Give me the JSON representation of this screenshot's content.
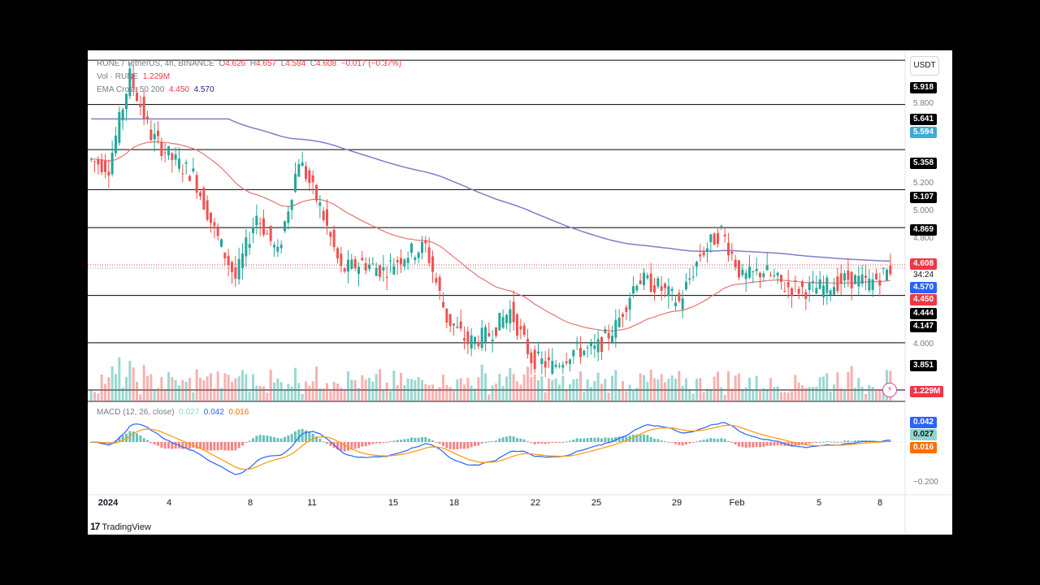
{
  "header": {
    "symbol": "RUNE / TetherUS, 4h, BINANCE",
    "open_label": "O",
    "open": "4.626",
    "high_label": "H",
    "high": "4.657",
    "low_label": "L",
    "low": "4.584",
    "close_label": "C",
    "close": "4.608",
    "change": "−0.017 (−0.37%)"
  },
  "volume_legend": {
    "label": "Vol · RUNE",
    "value": "1.229M"
  },
  "ema_legend": {
    "label": "EMA Cross 50 200",
    "fast": "4.450",
    "slow": "4.570"
  },
  "macd_legend": {
    "label": "MACD (12, 26, close)",
    "hist": "0.027",
    "macd": "0.042",
    "signal": "0.016"
  },
  "currency_button": "USDT",
  "price_axis_ticks": [
    "5.800",
    "5.200",
    "5.000",
    "4.800",
    "4.000"
  ],
  "macd_axis_ticks": [
    "−0.200"
  ],
  "price_tags": {
    "l5918": "5.918",
    "l5641": "5.641",
    "ema200_tag": "5.594",
    "l5358": "5.358",
    "l5107": "5.107",
    "l4869": "4.869",
    "last_price": "4.608",
    "countdown": "34:24",
    "ema200_now": "4.570",
    "ema50_now": "4.450",
    "l4444": "4.444",
    "l4147": "4.147",
    "l3851": "3.851",
    "volume_now": "1.229M"
  },
  "macd_tags": {
    "macd": "0.042",
    "hist": "0.027",
    "signal": "0.016"
  },
  "x_labels": [
    "2024",
    "4",
    "8",
    "11",
    "15",
    "18",
    "22",
    "25",
    "29",
    "Feb",
    "5",
    "8"
  ],
  "branding": "TradingView",
  "colors": {
    "up": "#26a69a",
    "down": "#ef5350",
    "ema_fast": "#e57373",
    "ema_slow": "#7e7ec8",
    "macd_line": "#2962ff",
    "signal_line": "#ff9800",
    "level_line": "#000000"
  },
  "chart_data": {
    "type": "candlestick",
    "timeframe": "4h",
    "x_range": [
      "2024-01-01",
      "2024-02-08"
    ],
    "y_range": [
      3.78,
      5.98
    ],
    "horizontal_levels": [
      5.918,
      5.641,
      5.358,
      5.107,
      4.869,
      4.444,
      4.147,
      3.851
    ],
    "close_series": [
      {
        "x": "2024-01-01",
        "y": 5.3
      },
      {
        "x": "2024-01-02",
        "y": 5.25
      },
      {
        "x": "2024-01-03",
        "y": 5.82
      },
      {
        "x": "2024-01-04",
        "y": 5.45
      },
      {
        "x": "2024-01-05",
        "y": 5.3
      },
      {
        "x": "2024-01-06",
        "y": 5.2
      },
      {
        "x": "2024-01-07",
        "y": 4.85
      },
      {
        "x": "2024-01-08",
        "y": 4.55
      },
      {
        "x": "2024-01-09",
        "y": 4.95
      },
      {
        "x": "2024-01-10",
        "y": 4.7
      },
      {
        "x": "2024-01-11",
        "y": 5.3
      },
      {
        "x": "2024-01-12",
        "y": 5.0
      },
      {
        "x": "2024-01-13",
        "y": 4.6
      },
      {
        "x": "2024-01-14",
        "y": 4.65
      },
      {
        "x": "2024-01-15",
        "y": 4.6
      },
      {
        "x": "2024-01-16",
        "y": 4.7
      },
      {
        "x": "2024-01-17",
        "y": 4.75
      },
      {
        "x": "2024-01-18",
        "y": 4.3
      },
      {
        "x": "2024-01-19",
        "y": 4.15
      },
      {
        "x": "2024-01-20",
        "y": 4.2
      },
      {
        "x": "2024-01-21",
        "y": 4.35
      },
      {
        "x": "2024-01-22",
        "y": 4.05
      },
      {
        "x": "2024-01-23",
        "y": 4.0
      },
      {
        "x": "2024-01-24",
        "y": 4.1
      },
      {
        "x": "2024-01-25",
        "y": 4.1
      },
      {
        "x": "2024-01-26",
        "y": 4.25
      },
      {
        "x": "2024-01-27",
        "y": 4.55
      },
      {
        "x": "2024-01-28",
        "y": 4.5
      },
      {
        "x": "2024-01-29",
        "y": 4.4
      },
      {
        "x": "2024-01-30",
        "y": 4.7
      },
      {
        "x": "2024-01-31",
        "y": 4.85
      },
      {
        "x": "2024-02-01",
        "y": 4.55
      },
      {
        "x": "2024-02-02",
        "y": 4.6
      },
      {
        "x": "2024-02-03",
        "y": 4.5
      },
      {
        "x": "2024-02-04",
        "y": 4.48
      },
      {
        "x": "2024-02-05",
        "y": 4.5
      },
      {
        "x": "2024-02-06",
        "y": 4.55
      },
      {
        "x": "2024-02-07",
        "y": 4.52
      },
      {
        "x": "2024-02-08",
        "y": 4.608
      }
    ],
    "ema_50_last": 4.45,
    "ema_200_last": 4.57,
    "volume_last": "1.229M",
    "macd": {
      "macd": 0.042,
      "signal": 0.016,
      "histogram": 0.027,
      "y_tick": -0.2
    }
  }
}
